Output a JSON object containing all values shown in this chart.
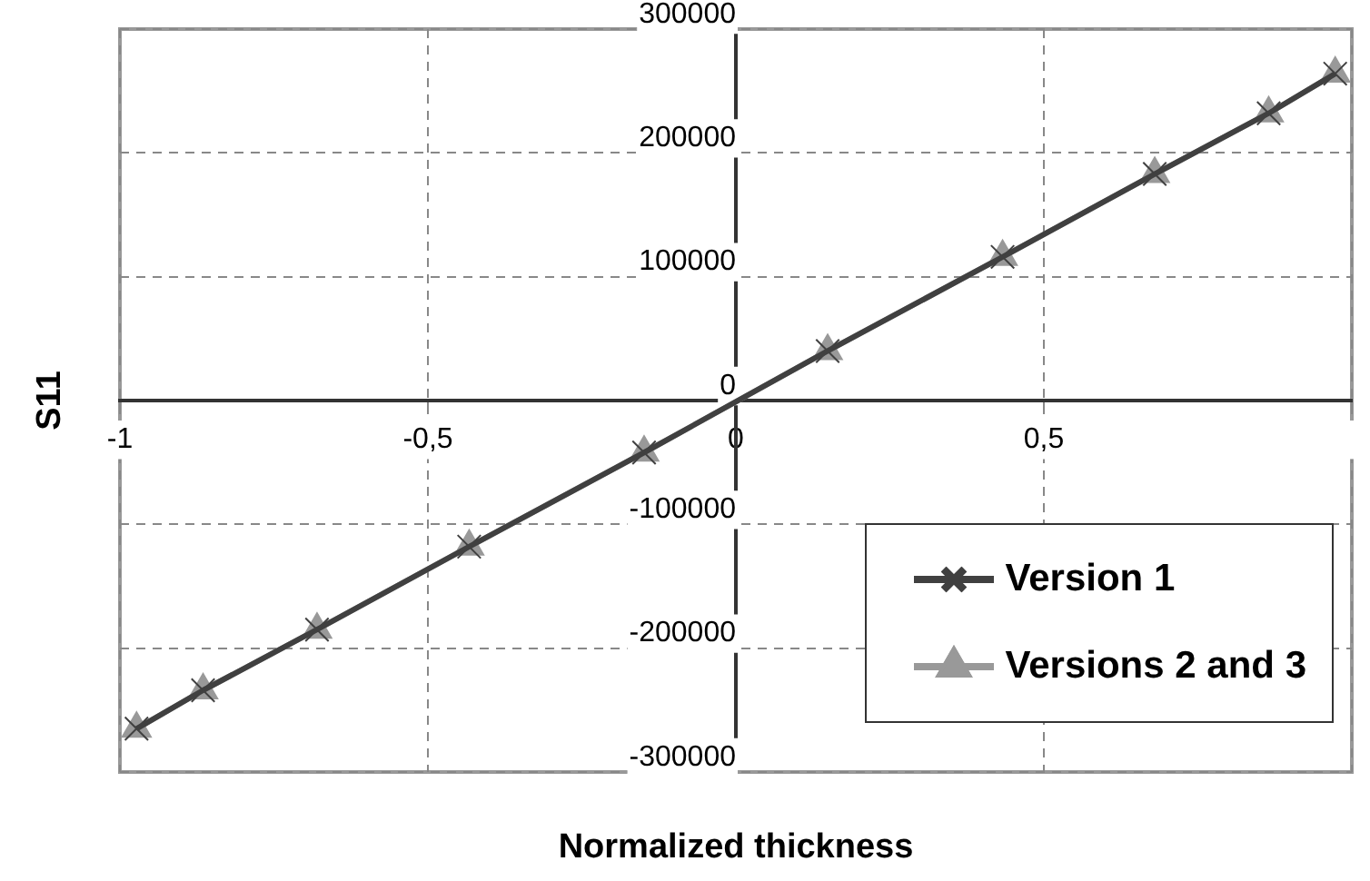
{
  "chart_data": {
    "type": "line",
    "xlabel": "Normalized thickness",
    "ylabel": "S11",
    "x": [
      -0.973,
      -0.865,
      -0.68,
      -0.433,
      -0.149,
      0.149,
      0.433,
      0.68,
      0.865,
      0.973
    ],
    "series": [
      {
        "name": "Version 1",
        "color": "#404040",
        "marker": "cross",
        "values": [
          -265000,
          -234000,
          -185000,
          -118000,
          -42000,
          40000,
          116000,
          183000,
          232000,
          264000
        ]
      },
      {
        "name": "Versions 2 and 3",
        "color": "#999999",
        "marker": "triangle",
        "values": [
          -265000,
          -234000,
          -185000,
          -118000,
          -42000,
          40000,
          116000,
          183000,
          232000,
          264000
        ]
      }
    ],
    "xlim": [
      -1,
      1
    ],
    "xticks": [
      -1,
      {
        "value": -0.5,
        "label": "-0,5"
      },
      0,
      {
        "value": 0.5,
        "label": "0,5"
      },
      {
        "value": 1,
        "label": null
      }
    ],
    "ylim": [
      -300000,
      300000
    ],
    "yticks": [
      -300000,
      -200000,
      -100000,
      0,
      100000,
      200000,
      300000
    ],
    "grid": true,
    "legend": "bottom right",
    "line_style": "solid"
  }
}
